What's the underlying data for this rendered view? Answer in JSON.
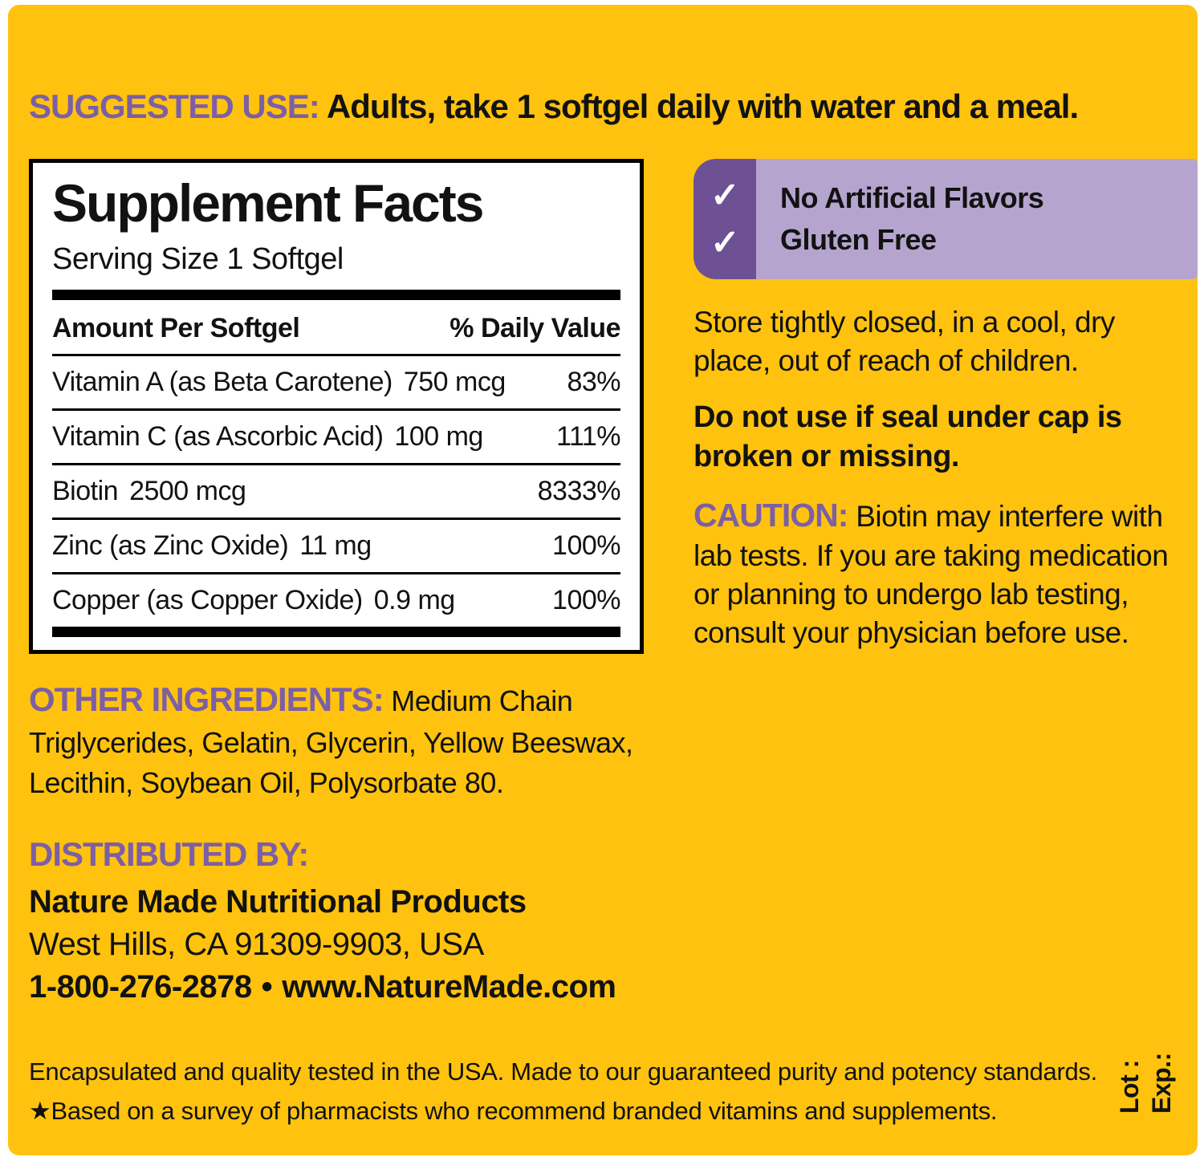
{
  "colors": {
    "label_background": "#FFC20E",
    "heading_purple": "#7C5FA5",
    "badge_dark_purple": "#6E5194",
    "badge_light_purple": "#B5A5CE",
    "text_black": "#121212",
    "page_white": "#FFFFFF"
  },
  "suggested_use": {
    "heading": "SUGGESTED USE:",
    "text": "Adults, take 1 softgel daily with water and a meal."
  },
  "supplement_facts": {
    "title": "Supplement Facts",
    "serving_size": "Serving Size 1 Softgel",
    "columns": {
      "amount": "Amount Per Softgel",
      "daily_value": "% Daily Value"
    },
    "rows": [
      {
        "name": "Vitamin A (as Beta Carotene)",
        "amount": "750 mcg",
        "daily_value": "83%"
      },
      {
        "name": "Vitamin C (as Ascorbic Acid)",
        "amount": "100 mg",
        "daily_value": "111%"
      },
      {
        "name": "Biotin",
        "amount": "2500 mcg",
        "daily_value": "8333%"
      },
      {
        "name": "Zinc (as Zinc Oxide)",
        "amount": "11 mg",
        "daily_value": "100%"
      },
      {
        "name": "Copper (as Copper Oxide)",
        "amount": "0.9 mg",
        "daily_value": "100%"
      }
    ]
  },
  "badges": {
    "check_icon": "✓",
    "items": [
      {
        "label": "No Artificial Flavors"
      },
      {
        "label": "Gluten Free"
      }
    ]
  },
  "storage_text": "Store tightly closed, in a cool, dry place, out of reach of children.",
  "seal_warning": "Do not use if seal under cap is broken or missing.",
  "caution": {
    "heading": "CAUTION:",
    "text": "Biotin may interfere with lab tests. If you are taking medication or planning to undergo lab testing, consult your physician before use."
  },
  "other_ingredients": {
    "heading": "OTHER INGREDIENTS:",
    "text": "Medium Chain Triglycerides, Gelatin, Glycerin, Yellow Beeswax, Lecithin, Soybean Oil, Polysorbate 80."
  },
  "distributed_by": {
    "heading": "DISTRIBUTED BY:",
    "company": "Nature Made Nutritional Products",
    "address": "West Hills, CA 91309-9903, USA",
    "phone": "1-800-276-2878",
    "separator": "•",
    "website": "www.NatureMade.com"
  },
  "footer": {
    "line1": "Encapsulated and quality tested in the USA. Made to our guaranteed purity and potency standards.",
    "line2": "★Based on a survey of pharmacists who recommend branded vitamins and supplements."
  },
  "side_labels": {
    "lot": "Lot :",
    "exp": "Exp.:"
  }
}
